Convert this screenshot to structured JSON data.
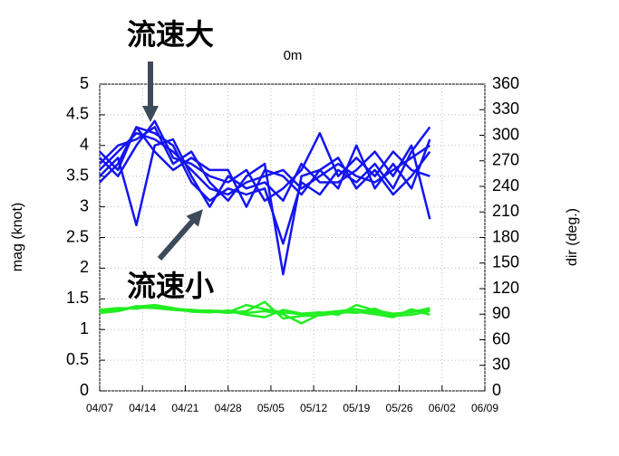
{
  "chart_data": {
    "type": "line",
    "title": "0m",
    "y_label": "mag (knot)",
    "y2_label": "dir (deg.)",
    "annotations": [
      "流速大",
      "流速小"
    ],
    "x": [
      "04/07",
      "04/10",
      "04/13",
      "04/16",
      "04/19",
      "04/22",
      "04/25",
      "04/28",
      "05/01",
      "05/04",
      "05/07",
      "05/10",
      "05/13",
      "05/16",
      "05/19",
      "05/22",
      "05/25",
      "05/28",
      "05/31"
    ],
    "xlim": [
      "04/07",
      "06/09"
    ],
    "xticks": [
      "04/07",
      "04/14",
      "04/21",
      "04/28",
      "05/05",
      "05/12",
      "05/19",
      "05/26",
      "06/02",
      "06/09"
    ],
    "ylim": [
      0,
      5
    ],
    "yticks": [
      0,
      0.5,
      1,
      1.5,
      2,
      2.5,
      3,
      3.5,
      4,
      4.5,
      5
    ],
    "y2lim": [
      0,
      360
    ],
    "y2ticks": [
      0,
      30,
      60,
      90,
      120,
      150,
      180,
      210,
      240,
      270,
      300,
      330,
      360
    ],
    "grid": true,
    "series": [
      {
        "color": "#1414f0",
        "values": [
          3.6,
          3.9,
          4.2,
          4.1,
          3.9,
          3.6,
          3.3,
          3.2,
          3.4,
          3.5,
          3.6,
          3.3,
          3.5,
          3.7,
          3.5,
          3.4,
          3.6,
          3.8,
          4.0
        ]
      },
      {
        "color": "#1414f0",
        "values": [
          3.4,
          3.7,
          4.3,
          4.2,
          4.0,
          3.4,
          3.1,
          3.3,
          3.2,
          3.3,
          2.4,
          3.4,
          3.2,
          3.6,
          3.4,
          3.7,
          3.3,
          3.9,
          4.3
        ]
      },
      {
        "color": "#1414f0",
        "values": [
          3.8,
          3.5,
          4.0,
          4.4,
          3.8,
          3.7,
          3.5,
          3.4,
          3.6,
          3.1,
          3.3,
          3.6,
          4.2,
          3.5,
          3.8,
          3.5,
          3.9,
          3.6,
          3.5
        ]
      },
      {
        "color": "#1414f0",
        "values": [
          3.5,
          3.8,
          2.7,
          4.0,
          4.1,
          3.5,
          3.0,
          3.5,
          3.3,
          3.4,
          3.1,
          3.7,
          3.4,
          3.4,
          3.6,
          3.9,
          3.5,
          4.0,
          2.8
        ]
      },
      {
        "color": "#1414f0",
        "values": [
          3.7,
          4.0,
          4.1,
          4.3,
          3.7,
          3.9,
          3.4,
          3.1,
          3.5,
          3.7,
          1.9,
          3.5,
          3.6,
          3.8,
          3.3,
          3.6,
          3.2,
          3.5,
          3.9
        ]
      },
      {
        "color": "#1414f0",
        "values": [
          3.9,
          3.6,
          4.3,
          3.9,
          3.6,
          3.8,
          3.6,
          3.6,
          3.0,
          3.6,
          3.5,
          3.2,
          3.6,
          3.3,
          4.0,
          3.3,
          3.7,
          3.3,
          4.1
        ]
      },
      {
        "color": "#22ee22",
        "values": [
          1.3,
          1.33,
          1.36,
          1.35,
          1.32,
          1.3,
          1.29,
          1.28,
          1.4,
          1.33,
          1.28,
          1.25,
          1.27,
          1.3,
          1.33,
          1.28,
          1.24,
          1.3,
          1.32
        ]
      },
      {
        "color": "#22ee22",
        "values": [
          1.28,
          1.31,
          1.38,
          1.37,
          1.34,
          1.32,
          1.3,
          1.27,
          1.3,
          1.45,
          1.18,
          1.22,
          1.23,
          1.27,
          1.29,
          1.25,
          1.2,
          1.33,
          1.24
        ]
      },
      {
        "color": "#22ee22",
        "values": [
          1.32,
          1.35,
          1.34,
          1.39,
          1.33,
          1.31,
          1.31,
          1.3,
          1.24,
          1.2,
          1.32,
          1.26,
          1.28,
          1.24,
          1.4,
          1.31,
          1.26,
          1.28,
          1.35
        ]
      },
      {
        "color": "#22ee22",
        "values": [
          1.27,
          1.3,
          1.37,
          1.4,
          1.35,
          1.29,
          1.28,
          1.31,
          1.27,
          1.3,
          1.25,
          1.1,
          1.25,
          1.29,
          1.27,
          1.34,
          1.22,
          1.24,
          1.3
        ]
      }
    ]
  }
}
